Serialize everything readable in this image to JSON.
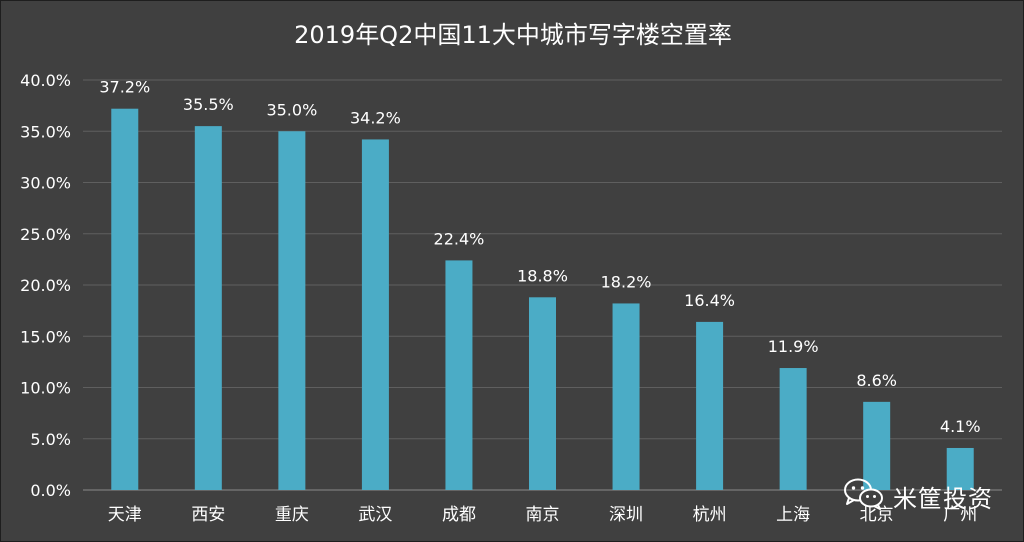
{
  "colors": {
    "background": "#404040",
    "bar": "#4bacc6",
    "grid": "#5f5f5f",
    "text": "#ffffff"
  },
  "watermark": {
    "icon": "wechat-icon",
    "text": "米筐投资"
  },
  "chart_data": {
    "type": "bar",
    "title": "2019年Q2中国11大中城市写字楼空置率",
    "categories": [
      "天津",
      "西安",
      "重庆",
      "武汉",
      "成都",
      "南京",
      "深圳",
      "杭州",
      "上海",
      "北京",
      "广州"
    ],
    "values": [
      37.2,
      35.5,
      35.0,
      34.2,
      22.4,
      18.8,
      18.2,
      16.4,
      11.9,
      8.6,
      4.1
    ],
    "value_labels": [
      "37.2%",
      "35.5%",
      "35.0%",
      "34.2%",
      "22.4%",
      "18.8%",
      "18.2%",
      "16.4%",
      "11.9%",
      "8.6%",
      "4.1%"
    ],
    "yticks": [
      "0.0%",
      "5.0%",
      "10.0%",
      "15.0%",
      "20.0%",
      "25.0%",
      "30.0%",
      "35.0%",
      "40.0%"
    ],
    "ylim": [
      0,
      40
    ],
    "ylabel": "",
    "xlabel": "",
    "grid": true,
    "legend": "none"
  }
}
